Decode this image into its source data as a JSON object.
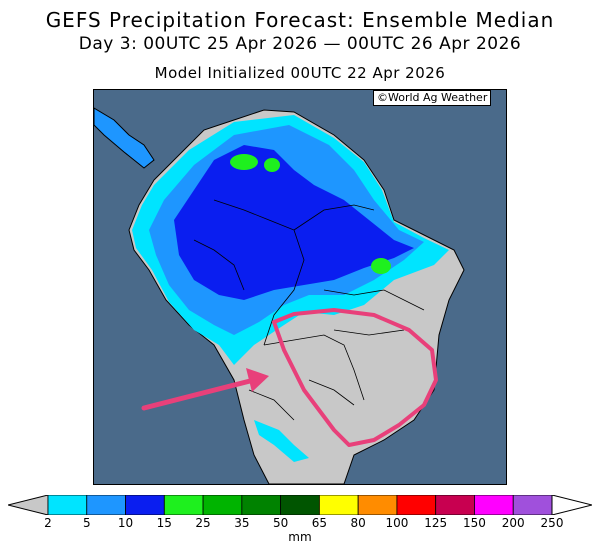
{
  "title": {
    "line1": "GEFS Precipitation Forecast: Ensemble Median",
    "line2": "Day 3: 00UTC 25 Apr 2026 — 00UTC 26 Apr 2026",
    "line3": "Model Initialized 00UTC 22 Apr 2026"
  },
  "credit": "©World Ag Weather",
  "colorbar": {
    "unit": "mm",
    "ticks": [
      "2",
      "5",
      "10",
      "15",
      "25",
      "35",
      "50",
      "65",
      "80",
      "100",
      "125",
      "150",
      "200",
      "250"
    ],
    "colors": [
      "#c8c8c8",
      "#00e4ff",
      "#1e96ff",
      "#0a1ef0",
      "#1ef01e",
      "#00b400",
      "#008200",
      "#005500",
      "#ffff00",
      "#ff8c00",
      "#ff0000",
      "#c80050",
      "#ff00ff",
      "#a050dc",
      "#ffffff"
    ]
  },
  "map": {
    "region": "South America",
    "ocean_color": "#4a6a8a",
    "land_dry_color": "#c8c8c8",
    "annotation": {
      "shape": "loop + arrow",
      "color": "#e8407a"
    }
  }
}
